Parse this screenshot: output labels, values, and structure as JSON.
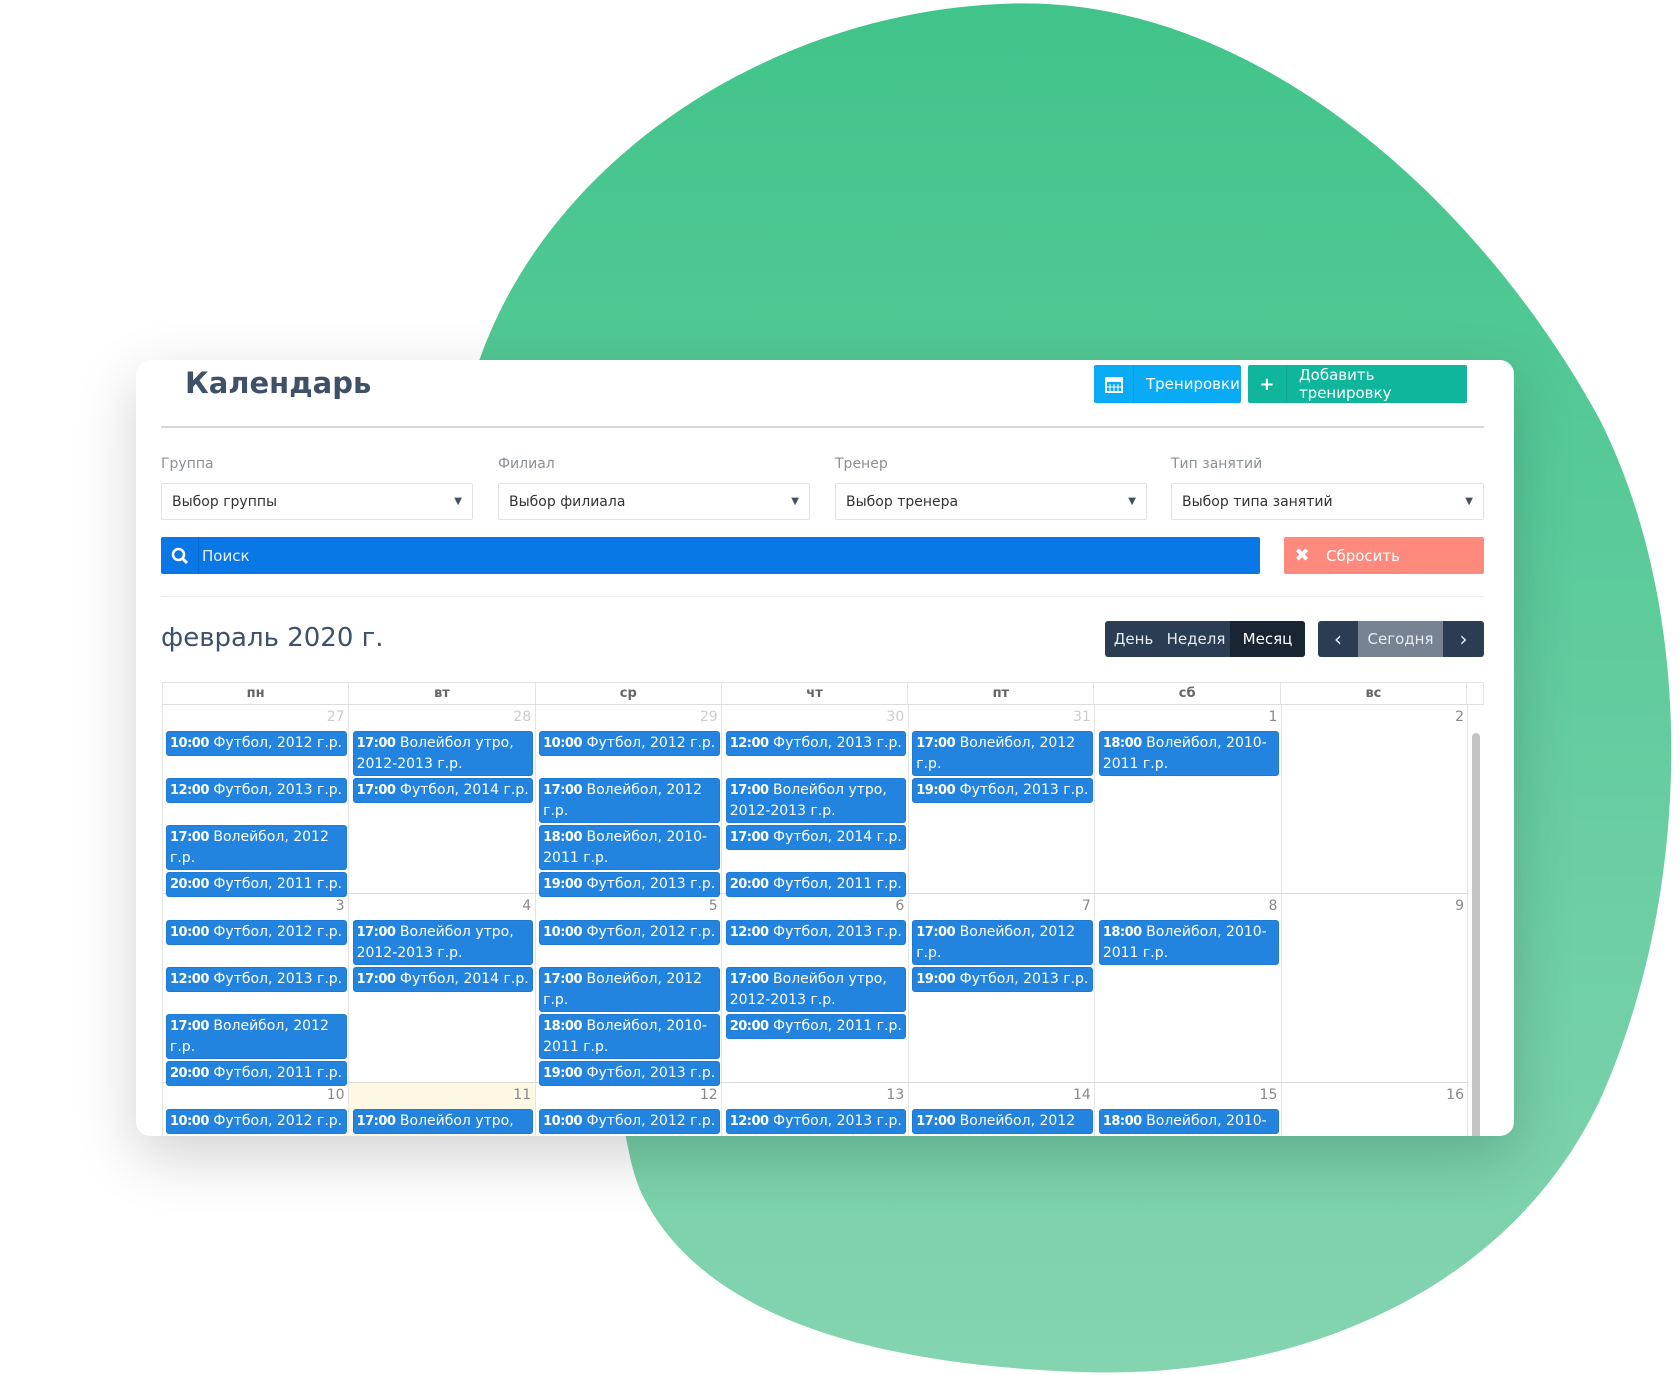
{
  "colors": {
    "blob_top": "#40c48a",
    "blob_bottom": "#84d4b0",
    "event": "#2384e0",
    "search": "#0a77e6",
    "reset": "#fe8a7e",
    "trainings": "#0aabf5",
    "add": "#0fb69c"
  },
  "header": {
    "title": "Календарь",
    "trainings_label": "Тренировки",
    "trainings_icon": "calendar-icon",
    "add_label": "Добавить тренировку",
    "add_icon": "plus-icon"
  },
  "filters": [
    {
      "label": "Группа",
      "value": "Выбор группы"
    },
    {
      "label": "Филиал",
      "value": "Выбор филиала"
    },
    {
      "label": "Тренер",
      "value": "Выбор тренера"
    },
    {
      "label": "Тип занятий",
      "value": "Выбор типа занятий"
    }
  ],
  "search": {
    "placeholder": "Поиск"
  },
  "reset_label": "Сбросить",
  "calendar": {
    "month_title": "февраль 2020 г.",
    "views": [
      "День",
      "Неделя",
      "Месяц"
    ],
    "active_view": "Месяц",
    "today_label": "Сегодня",
    "weekdays": [
      "пн",
      "вт",
      "ср",
      "чт",
      "пт",
      "сб",
      "вс"
    ],
    "weeks": [
      {
        "days": [
          {
            "num": "27",
            "muted": true,
            "events": [
              {
                "time": "10:00",
                "title": "Футбол, 2012 г.р."
              },
              {
                "time": "12:00",
                "title": "Футбол, 2013 г.р."
              },
              {
                "time": "17:00",
                "title": "Волейбол, 2012 г.р."
              },
              {
                "time": "20:00",
                "title": "Футбол, 2011 г.р."
              }
            ]
          },
          {
            "num": "28",
            "muted": true,
            "events": [
              {
                "time": "17:00",
                "title": "Волейбол утро, 2012-2013 г.р."
              },
              {
                "time": "17:00",
                "title": "Футбол, 2014 г.р."
              }
            ]
          },
          {
            "num": "29",
            "muted": true,
            "events": [
              {
                "time": "10:00",
                "title": "Футбол, 2012 г.р."
              },
              {
                "time": "17:00",
                "title": "Волейбол, 2012 г.р."
              },
              {
                "time": "18:00",
                "title": "Волейбол, 2010-2011 г.р."
              },
              {
                "time": "19:00",
                "title": "Футбол, 2013 г.р."
              }
            ]
          },
          {
            "num": "30",
            "muted": true,
            "events": [
              {
                "time": "12:00",
                "title": "Футбол, 2013 г.р."
              },
              {
                "time": "17:00",
                "title": "Волейбол утро, 2012-2013 г.р."
              },
              {
                "time": "17:00",
                "title": "Футбол, 2014 г.р."
              },
              {
                "time": "20:00",
                "title": "Футбол, 2011 г.р."
              }
            ]
          },
          {
            "num": "31",
            "muted": true,
            "events": [
              {
                "time": "17:00",
                "title": "Волейбол, 2012 г.р."
              },
              {
                "time": "19:00",
                "title": "Футбол, 2013 г.р."
              }
            ]
          },
          {
            "num": "1",
            "events": [
              {
                "time": "18:00",
                "title": "Волейбол, 2010-2011 г.р."
              }
            ]
          },
          {
            "num": "2",
            "events": []
          }
        ]
      },
      {
        "days": [
          {
            "num": "3",
            "events": [
              {
                "time": "10:00",
                "title": "Футбол, 2012 г.р."
              },
              {
                "time": "12:00",
                "title": "Футбол, 2013 г.р."
              },
              {
                "time": "17:00",
                "title": "Волейбол, 2012 г.р."
              },
              {
                "time": "20:00",
                "title": "Футбол, 2011 г.р."
              }
            ]
          },
          {
            "num": "4",
            "events": [
              {
                "time": "17:00",
                "title": "Волейбол утро, 2012-2013 г.р."
              },
              {
                "time": "17:00",
                "title": "Футбол, 2014 г.р."
              }
            ]
          },
          {
            "num": "5",
            "events": [
              {
                "time": "10:00",
                "title": "Футбол, 2012 г.р."
              },
              {
                "time": "17:00",
                "title": "Волейбол, 2012 г.р."
              },
              {
                "time": "18:00",
                "title": "Волейбол, 2010-2011 г.р."
              },
              {
                "time": "19:00",
                "title": "Футбол, 2013 г.р."
              }
            ]
          },
          {
            "num": "6",
            "events": [
              {
                "time": "12:00",
                "title": "Футбол, 2013 г.р."
              },
              {
                "time": "17:00",
                "title": "Волейбол утро, 2012-2013 г.р."
              },
              {
                "time": "20:00",
                "title": "Футбол, 2011 г.р."
              }
            ]
          },
          {
            "num": "7",
            "events": [
              {
                "time": "17:00",
                "title": "Волейбол, 2012 г.р."
              },
              {
                "time": "19:00",
                "title": "Футбол, 2013 г.р."
              }
            ]
          },
          {
            "num": "8",
            "events": [
              {
                "time": "18:00",
                "title": "Волейбол, 2010-2011 г.р."
              }
            ]
          },
          {
            "num": "9",
            "events": []
          }
        ]
      },
      {
        "days": [
          {
            "num": "10",
            "events": [
              {
                "time": "10:00",
                "title": "Футбол, 2012 г.р."
              }
            ]
          },
          {
            "num": "11",
            "today": true,
            "events": [
              {
                "time": "17:00",
                "title": "Волейбол утро,"
              }
            ]
          },
          {
            "num": "12",
            "events": [
              {
                "time": "10:00",
                "title": "Футбол, 2012 г.р."
              }
            ]
          },
          {
            "num": "13",
            "events": [
              {
                "time": "12:00",
                "title": "Футбол, 2013 г.р."
              }
            ]
          },
          {
            "num": "14",
            "events": [
              {
                "time": "17:00",
                "title": "Волейбол, 2012"
              }
            ]
          },
          {
            "num": "15",
            "events": [
              {
                "time": "18:00",
                "title": "Волейбол, 2010-"
              }
            ]
          },
          {
            "num": "16",
            "events": []
          }
        ]
      }
    ]
  }
}
